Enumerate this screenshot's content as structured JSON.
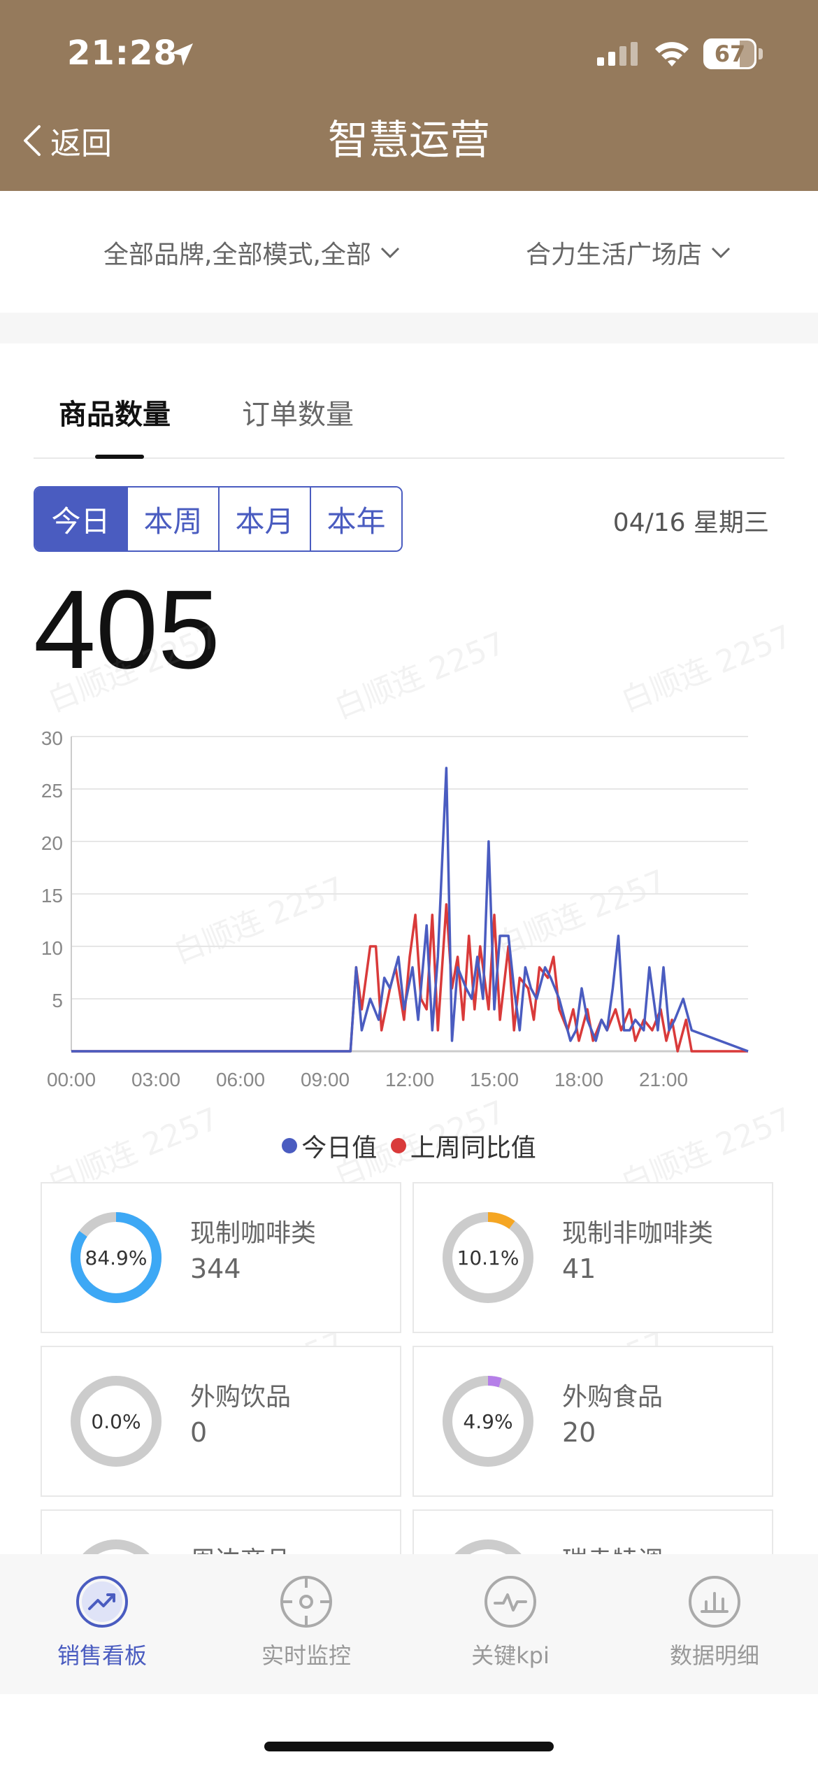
{
  "status_bar": {
    "time": "21:28",
    "battery": "67"
  },
  "nav": {
    "back_label": "返回",
    "title": "智慧运营"
  },
  "filters": {
    "brand": "全部品牌,全部模式,全部",
    "store": "合力生活广场店"
  },
  "tabs": [
    {
      "label": "商品数量"
    },
    {
      "label": "订单数量"
    }
  ],
  "period_buttons": [
    {
      "label": "今日"
    },
    {
      "label": "本周"
    },
    {
      "label": "本月"
    },
    {
      "label": "本年"
    }
  ],
  "date": "04/16 星期三",
  "total": "405",
  "watermark": "白顺连 2257",
  "colors": {
    "today": "#4a5cc0",
    "last_week": "#d93a3a",
    "accent": "#4a5cc0",
    "header": "#957a5c"
  },
  "chart_data": {
    "type": "line",
    "xlabel": "",
    "ylabel": "",
    "x_tick_labels": [
      "00:00",
      "03:00",
      "06:00",
      "09:00",
      "12:00",
      "15:00",
      "18:00",
      "21:00"
    ],
    "y_ticks": [
      5,
      10,
      15,
      20,
      25,
      30
    ],
    "y_tick_labels": [
      "5",
      "10",
      "15",
      "20",
      "25",
      "30"
    ],
    "ylim": [
      0,
      30
    ],
    "xlim": [
      0,
      24
    ],
    "grid": true,
    "legend": "bottom-center",
    "series": [
      {
        "name": "今日值",
        "x": [
          0,
          9.9,
          10.1,
          10.3,
          10.6,
          10.9,
          11.1,
          11.3,
          11.6,
          11.8,
          12.1,
          12.3,
          12.6,
          12.8,
          13.0,
          13.3,
          13.5,
          13.7,
          14.0,
          14.2,
          14.4,
          14.6,
          14.8,
          15.0,
          15.2,
          15.5,
          15.7,
          15.9,
          16.1,
          16.3,
          16.5,
          16.8,
          17.0,
          17.3,
          17.5,
          17.7,
          17.9,
          18.1,
          18.3,
          18.6,
          18.8,
          19.0,
          19.2,
          19.4,
          19.6,
          19.8,
          20.0,
          20.3,
          20.5,
          20.8,
          21.0,
          21.2,
          21.4,
          21.7,
          22.0,
          24
        ],
        "y": [
          0,
          0,
          8,
          2,
          5,
          3,
          7,
          6,
          9,
          4,
          8,
          3,
          12,
          2,
          9,
          27,
          1,
          8,
          6,
          5,
          9,
          5,
          20,
          4,
          11,
          11,
          6,
          2,
          8,
          6,
          5,
          8,
          7,
          5,
          3,
          1,
          2,
          6,
          3,
          1,
          3,
          2,
          6,
          11,
          2,
          2,
          3,
          2,
          8,
          2,
          8,
          2,
          3,
          5,
          2,
          0
        ]
      },
      {
        "name": "上周同比值",
        "x": [
          0,
          9.9,
          10.1,
          10.3,
          10.6,
          10.8,
          11.0,
          11.3,
          11.5,
          11.8,
          12.0,
          12.2,
          12.4,
          12.6,
          12.8,
          13.0,
          13.3,
          13.5,
          13.7,
          13.9,
          14.1,
          14.3,
          14.5,
          14.8,
          15.0,
          15.2,
          15.5,
          15.7,
          15.9,
          16.2,
          16.4,
          16.6,
          16.9,
          17.1,
          17.3,
          17.6,
          17.8,
          18.0,
          18.3,
          18.5,
          18.8,
          19.0,
          19.3,
          19.5,
          19.8,
          20.0,
          20.3,
          20.6,
          20.9,
          21.1,
          21.3,
          21.5,
          21.8,
          22.0,
          24
        ],
        "y": [
          0,
          0,
          8,
          4,
          10,
          10,
          2,
          6,
          8,
          3,
          9,
          13,
          5,
          4,
          13,
          2,
          14,
          6,
          9,
          3,
          11,
          4,
          10,
          4,
          13,
          3,
          10,
          2,
          7,
          6,
          3,
          8,
          7,
          9,
          4,
          2,
          4,
          1,
          4,
          1,
          3,
          2,
          4,
          2,
          4,
          1,
          3,
          2,
          4,
          1,
          3,
          0,
          3,
          0,
          0
        ]
      }
    ]
  },
  "categories": [
    {
      "name": "现制咖啡类",
      "value": "344",
      "pct_label": "84.9%",
      "pct": 0.849,
      "color": "#3da8f5"
    },
    {
      "name": "现制非咖啡类",
      "value": "41",
      "pct_label": "10.1%",
      "pct": 0.101,
      "color": "#f5a623"
    },
    {
      "name": "外购饮品",
      "value": "0",
      "pct_label": "0.0%",
      "pct": 0.0,
      "color": "#cccccc"
    },
    {
      "name": "外购食品",
      "value": "20",
      "pct_label": "4.9%",
      "pct": 0.049,
      "color": "#b57fe8"
    },
    {
      "name": "周边商品",
      "value": "",
      "pct_label": "",
      "pct": 0,
      "color": "#cccccc"
    },
    {
      "name": "瑞幸特调",
      "value": "",
      "pct_label": "",
      "pct": 0,
      "color": "#cccccc"
    }
  ],
  "tabbar": [
    {
      "label": "销售看板",
      "icon": "trending-up-icon",
      "active": true
    },
    {
      "label": "实时监控",
      "icon": "target-icon",
      "active": false
    },
    {
      "label": "关键kpi",
      "icon": "pulse-icon",
      "active": false
    },
    {
      "label": "数据明细",
      "icon": "bar-chart-icon",
      "active": false
    }
  ]
}
